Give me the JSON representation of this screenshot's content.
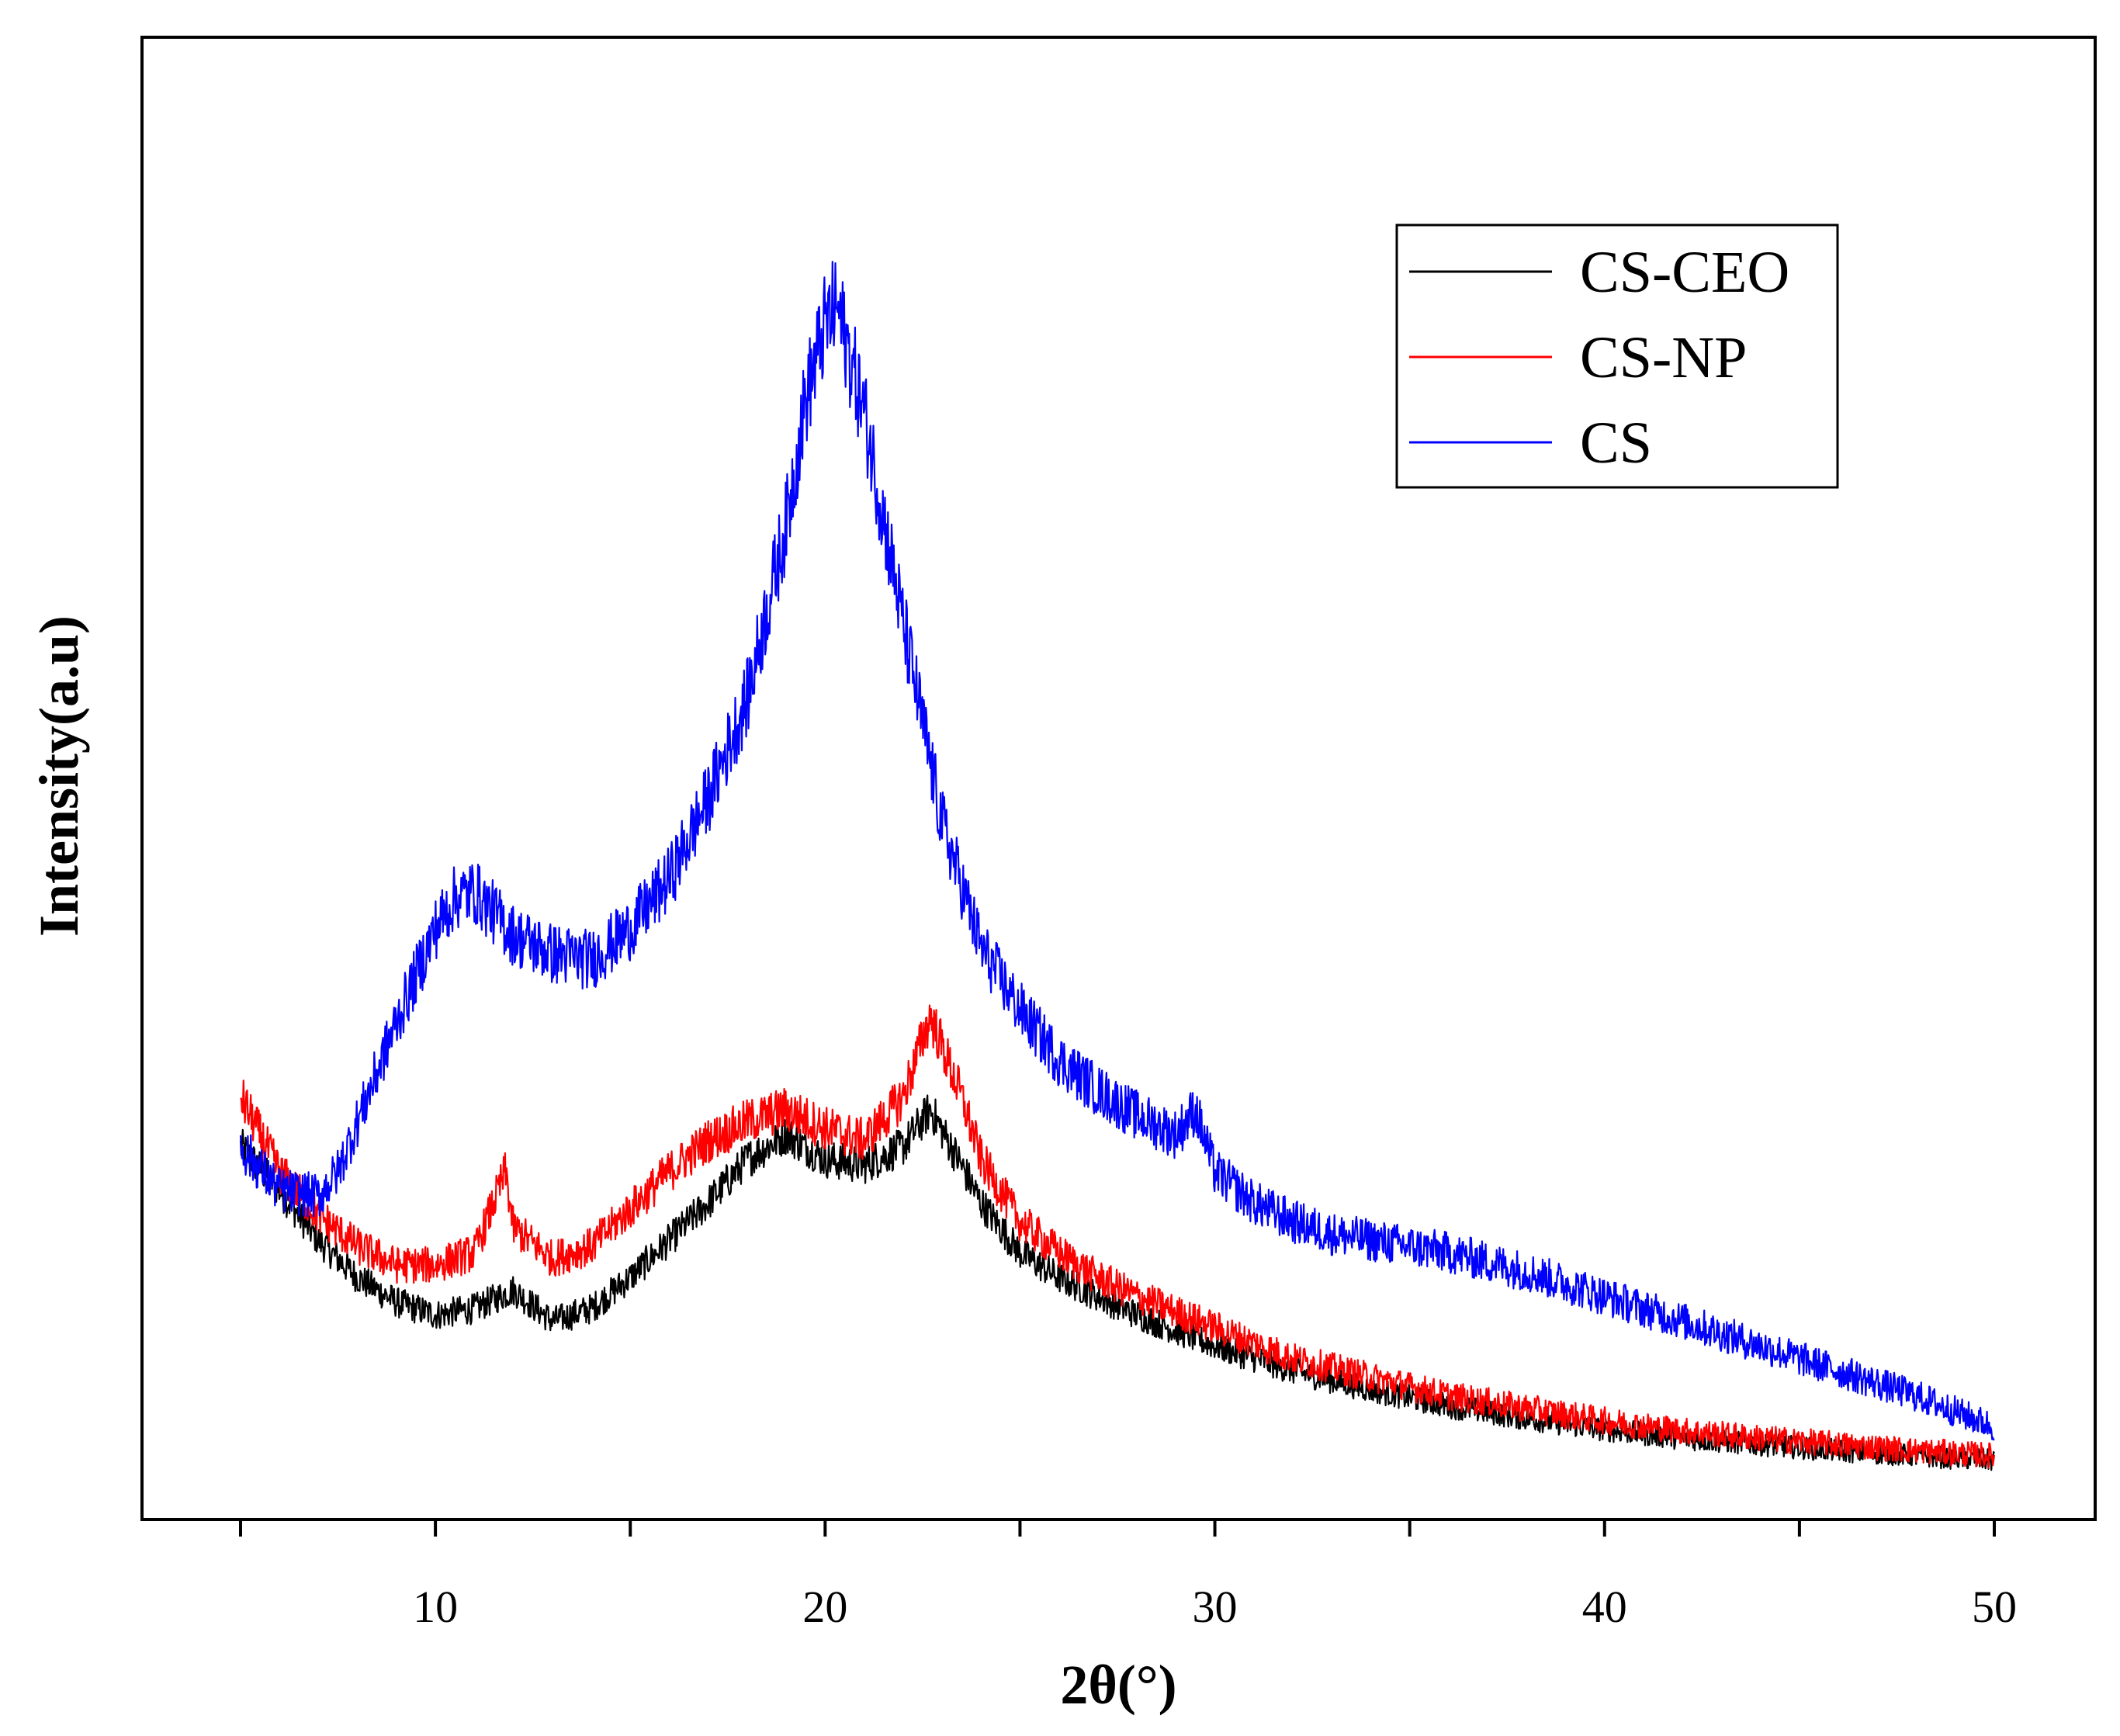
{
  "chart_data": {
    "type": "line",
    "title": "",
    "xlabel": "2θ(°)",
    "ylabel": "Intensity(a.u)",
    "xlim": [
      2.5,
      52.5
    ],
    "ylim": [
      0,
      100
    ],
    "xticks": [
      10,
      20,
      30,
      40,
      50
    ],
    "xtick_labels": [
      "10",
      "20",
      "30",
      "40",
      "50"
    ],
    "yticks_shown": false,
    "grid": false,
    "legend_position": "top-right",
    "series": [
      {
        "name": "CS-CEO",
        "color": "#000000",
        "x": [
          5,
          6,
          7,
          8,
          9,
          10,
          11,
          12,
          13,
          14,
          15,
          16,
          17,
          18,
          19,
          20,
          21,
          22,
          22.7,
          23.5,
          24,
          25,
          26,
          27,
          28,
          30,
          32,
          34,
          36,
          38,
          40,
          42,
          44,
          46,
          48,
          50
        ],
        "y": [
          26,
          22.5,
          18.5,
          15.5,
          13.5,
          12.5,
          13,
          14.5,
          12,
          13,
          15.5,
          18.5,
          21.5,
          25,
          27,
          25,
          24.5,
          26,
          29,
          24.5,
          21.5,
          17.5,
          15.5,
          14,
          12.5,
          10,
          8,
          6.5,
          5.2,
          4.2,
          3.3,
          2.6,
          2.1,
          1.6,
          1.2,
          0.8
        ]
      },
      {
        "name": "CS-NP",
        "color": "#ff0000",
        "x": [
          5,
          6,
          7,
          8,
          9,
          10,
          11,
          11.8,
          12,
          13,
          14,
          15,
          16,
          17,
          18,
          19,
          20,
          21,
          22,
          22.7,
          23.5,
          24,
          25,
          26,
          27,
          28,
          30,
          32,
          34,
          36,
          38,
          40,
          42,
          44,
          46,
          48,
          50
        ],
        "y": [
          30,
          24,
          20.5,
          18,
          16.5,
          16.5,
          17.5,
          24,
          19.5,
          17,
          18,
          21,
          24,
          26.5,
          28,
          29,
          27.5,
          26.5,
          30,
          36.5,
          30,
          25,
          20,
          17.5,
          15.5,
          14,
          11.5,
          9,
          7.5,
          6,
          5,
          4,
          3.2,
          2.6,
          2.1,
          1.6,
          1.2
        ]
      },
      {
        "name": "CS",
        "color": "#0000ff",
        "x": [
          5,
          6,
          7,
          7.5,
          8,
          9,
          10,
          10.5,
          11,
          12,
          13,
          14,
          15,
          16,
          17,
          18,
          19,
          19.5,
          20,
          20.3,
          21,
          22,
          23,
          24,
          25,
          26,
          27,
          28,
          29,
          29.5,
          30,
          31,
          32,
          33,
          34,
          36,
          38,
          40,
          42,
          44,
          46,
          48,
          50
        ],
        "y": [
          26,
          22.5,
          22,
          24,
          28,
          36,
          43.5,
          46,
          46.5,
          43,
          41.5,
          41,
          43.5,
          47.5,
          54,
          62,
          76,
          86,
          92,
          93.5,
          85,
          68,
          52,
          42,
          37,
          33,
          30.5,
          28.5,
          27,
          29,
          24,
          21.5,
          20,
          19,
          18.5,
          17.5,
          16,
          14,
          12,
          10,
          8,
          6,
          3.5
        ]
      }
    ]
  }
}
